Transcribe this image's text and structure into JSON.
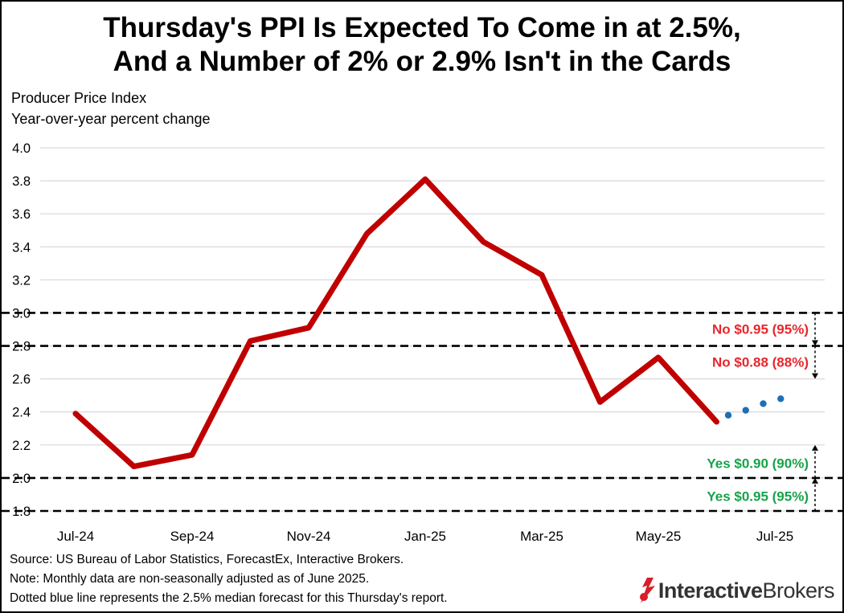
{
  "title_line1": "Thursday's PPI Is Expected To Come in at 2.5%,",
  "title_line2": "And a Number of 2% or 2.9% Isn't in the Cards",
  "y_axis_line1": "Producer Price Index",
  "y_axis_line2": "Year-over-year percent change",
  "source": "Source: US Bureau of Labor Statistics, ForecastEx, Interactive Brokers.",
  "note": "Note: Monthly data are non-seasonally adjusted as of June 2025.",
  "dotted_note": "Dotted blue line represents the 2.5% median forecast for this Thursday's report.",
  "logo": {
    "part1": "Interactive",
    "part2": "Brokers"
  },
  "colors": {
    "series": "#c00000",
    "forecast": "#1f6fb5",
    "no": "#e8262a",
    "yes": "#17a34a",
    "grid": "#d9d9d9"
  },
  "chart_data": {
    "type": "line",
    "ylim": [
      1.8,
      4.0
    ],
    "yticks": [
      "1.8",
      "2.0",
      "2.2",
      "2.4",
      "2.6",
      "2.8",
      "3.0",
      "3.2",
      "3.4",
      "3.6",
      "3.8",
      "4.0"
    ],
    "x_labels": [
      {
        "index": 0,
        "label": "Jul-24"
      },
      {
        "index": 2,
        "label": "Sep-24"
      },
      {
        "index": 4,
        "label": "Nov-24"
      },
      {
        "index": 6,
        "label": "Jan-25"
      },
      {
        "index": 8,
        "label": "Mar-25"
      },
      {
        "index": 10,
        "label": "May-25"
      },
      {
        "index": 12,
        "label": "Jul-25"
      }
    ],
    "series": [
      {
        "name": "PPI YoY",
        "x": [
          0,
          1,
          2,
          3,
          4,
          5,
          6,
          7,
          8,
          9,
          10,
          11
        ],
        "values": [
          2.39,
          2.07,
          2.14,
          2.83,
          2.91,
          3.48,
          3.81,
          3.43,
          3.23,
          2.46,
          2.73,
          2.34
        ]
      },
      {
        "name": "Median forecast",
        "style": "dotted",
        "x": [
          11.2,
          11.5,
          11.8,
          12.1
        ],
        "values": [
          2.38,
          2.41,
          2.45,
          2.48
        ]
      }
    ],
    "thresholds": [
      {
        "value": 3.0,
        "label": "No $0.95 (95%)",
        "kind": "no",
        "arrow_to": 2.8
      },
      {
        "value": 2.8,
        "label": "No $0.88 (88%)",
        "kind": "no",
        "arrow_to": 2.6
      },
      {
        "value": 2.0,
        "label": "Yes $0.90 (90%)",
        "kind": "yes",
        "arrow_to": 2.2
      },
      {
        "value": 1.8,
        "label": "Yes $0.95 (95%)",
        "kind": "yes",
        "arrow_to": 2.0
      }
    ]
  }
}
